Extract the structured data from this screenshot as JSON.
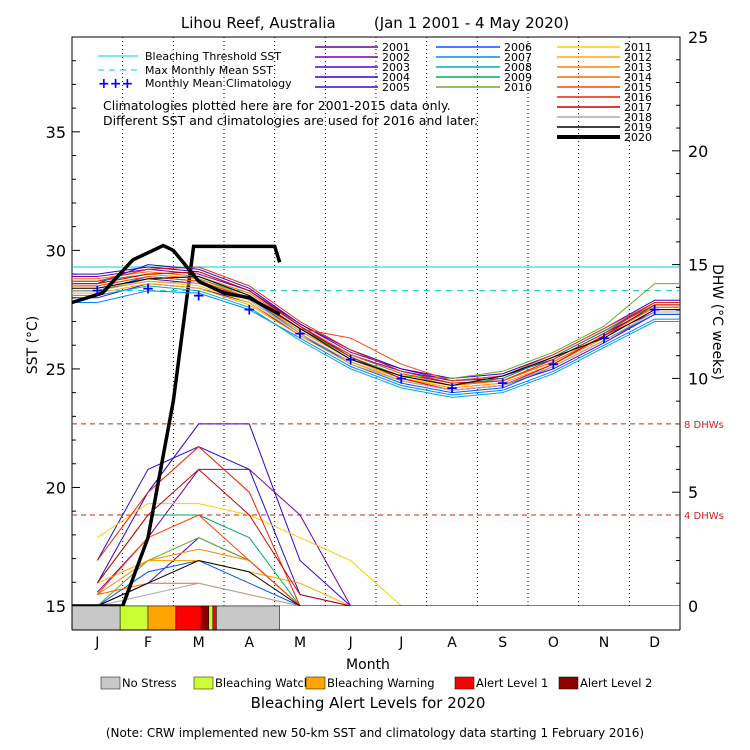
{
  "chart_data": {
    "type": "line",
    "title": "Lihou Reef, Australia        (Jan 1 2001 - 4 May 2020)",
    "xlabel": "Month",
    "ylabel_left": "SST (°C)",
    "ylabel_right": "DHW (°C weeks)",
    "months": [
      "J",
      "F",
      "M",
      "A",
      "M",
      "J",
      "J",
      "A",
      "S",
      "O",
      "N",
      "D"
    ],
    "sst_axis": {
      "min": 15,
      "max": 39,
      "ticks": [
        15,
        20,
        25,
        30,
        35
      ]
    },
    "dhw_axis": {
      "min": 0,
      "max": 25,
      "ticks": [
        0,
        5,
        10,
        15,
        20,
        25
      ]
    },
    "bleaching_threshold_sst": 29.3,
    "max_monthly_mean_sst": 28.3,
    "dhw_thresholds": [
      {
        "value": 8,
        "label": "8 DHWs"
      },
      {
        "value": 4,
        "label": "4 DHWs"
      }
    ],
    "legend_left": [
      {
        "label": "Bleaching Threshold SST",
        "color": "#00cccc",
        "style": "solid"
      },
      {
        "label": "Max Monthly Mean SST",
        "color": "#00cccc",
        "style": "dashed"
      },
      {
        "label": "Monthly Mean Climatology",
        "color": "#0000ff",
        "style": "plus"
      }
    ],
    "notes": [
      "Climatologies plotted here are for 2001-2015 data only.",
      "Different SST and climatologies are used for 2016 and later."
    ],
    "climatology": {
      "x": [
        0.5,
        1.5,
        2.5,
        3.5,
        4.5,
        5.5,
        6.5,
        7.5,
        8.5,
        9.5,
        10.5,
        11.5
      ],
      "sst": [
        28.3,
        28.4,
        28.1,
        27.5,
        26.5,
        25.4,
        24.6,
        24.2,
        24.4,
        25.2,
        26.3,
        27.5
      ]
    },
    "series": [
      {
        "name": "2001",
        "color": "#660099",
        "width": 1,
        "sst": [
          28.3,
          28.8,
          28.6,
          28.0,
          26.7,
          25.6,
          24.8,
          24.4,
          24.5,
          25.3,
          26.4,
          27.4
        ],
        "dhw": [
          0,
          0,
          0,
          0,
          0,
          0,
          0,
          0,
          0,
          0,
          0,
          0
        ]
      },
      {
        "name": "2002",
        "color": "#7700aa",
        "width": 1,
        "sst": [
          28.9,
          29.2,
          29.0,
          28.3,
          26.9,
          25.7,
          25.0,
          24.5,
          24.6,
          25.5,
          26.6,
          27.8
        ],
        "dhw": [
          0.6,
          3.0,
          6.0,
          6.0,
          4.0,
          0,
          0,
          0,
          0,
          0,
          0,
          0
        ]
      },
      {
        "name": "2003",
        "color": "#5500bb",
        "width": 1,
        "sst": [
          28.0,
          28.6,
          28.4,
          27.8,
          26.4,
          25.3,
          24.5,
          24.1,
          24.3,
          25.0,
          26.1,
          27.3
        ],
        "dhw": [
          0,
          1.0,
          3.0,
          2.0,
          0,
          0,
          0,
          0,
          0,
          0,
          0,
          0
        ]
      },
      {
        "name": "2004",
        "color": "#3300cc",
        "width": 1,
        "sst": [
          28.6,
          29.4,
          29.2,
          28.4,
          26.9,
          25.8,
          25.0,
          24.6,
          24.8,
          25.6,
          26.7,
          27.9
        ],
        "dhw": [
          1.0,
          5.0,
          8.0,
          8.0,
          2.0,
          0,
          0,
          0,
          0,
          0,
          0,
          0
        ]
      },
      {
        "name": "2005",
        "color": "#2211cc",
        "width": 1,
        "sst": [
          29.0,
          29.3,
          29.1,
          28.3,
          26.8,
          25.6,
          24.9,
          24.5,
          24.7,
          25.4,
          26.5,
          27.6
        ],
        "dhw": [
          2.0,
          6.0,
          7.0,
          6.0,
          0.5,
          0,
          0,
          0,
          0,
          0,
          0,
          0
        ]
      },
      {
        "name": "2006",
        "color": "#0055ff",
        "width": 1,
        "sst": [
          28.3,
          28.9,
          28.7,
          28.0,
          26.5,
          25.2,
          24.4,
          24.0,
          24.2,
          25.1,
          26.2,
          27.3
        ],
        "dhw": [
          0,
          1.5,
          2.0,
          1.0,
          0,
          0,
          0,
          0,
          0,
          0,
          0,
          0
        ]
      },
      {
        "name": "2007",
        "color": "#0088ff",
        "width": 1,
        "sst": [
          27.8,
          28.3,
          28.2,
          27.5,
          26.3,
          25.1,
          24.3,
          23.9,
          24.1,
          24.9,
          26.0,
          27.1
        ],
        "dhw": [
          0,
          0,
          0,
          0,
          0,
          0,
          0,
          0,
          0,
          0,
          0,
          0
        ]
      },
      {
        "name": "2008",
        "color": "#00aacc",
        "width": 1,
        "sst": [
          28.1,
          28.5,
          28.3,
          27.6,
          26.2,
          25.0,
          24.2,
          23.8,
          24.0,
          24.8,
          25.9,
          27.0
        ],
        "dhw": [
          0,
          0,
          0,
          0,
          0,
          0,
          0,
          0,
          0,
          0,
          0,
          0
        ]
      },
      {
        "name": "2009",
        "color": "#00aa66",
        "width": 1,
        "sst": [
          28.7,
          29.0,
          28.8,
          28.1,
          26.7,
          25.5,
          24.7,
          24.3,
          24.6,
          25.5,
          26.6,
          27.7
        ],
        "dhw": [
          1.0,
          4.0,
          4.0,
          3.0,
          0,
          0,
          0,
          0,
          0,
          0,
          0,
          0
        ]
      },
      {
        "name": "2010",
        "color": "#66aa33",
        "width": 1,
        "sst": [
          28.5,
          28.9,
          28.7,
          28.0,
          26.6,
          25.4,
          24.7,
          24.6,
          24.9,
          25.7,
          26.8,
          28.6
        ],
        "dhw": [
          0,
          2.0,
          3.0,
          2.0,
          0,
          0,
          0,
          0,
          0,
          0,
          0,
          0
        ]
      },
      {
        "name": "2011",
        "color": "#ffcc00",
        "width": 1,
        "sst": [
          28.4,
          28.7,
          28.5,
          27.8,
          26.5,
          25.3,
          24.6,
          24.3,
          24.5,
          25.3,
          26.4,
          27.6
        ],
        "dhw": [
          3.0,
          4.5,
          4.5,
          4.0,
          3.0,
          2.0,
          0,
          0,
          0,
          0,
          0,
          0
        ]
      },
      {
        "name": "2012",
        "color": "#ffaa00",
        "width": 1,
        "sst": [
          28.2,
          28.6,
          28.4,
          27.7,
          26.4,
          25.2,
          24.5,
          24.1,
          24.3,
          25.1,
          26.2,
          27.4
        ],
        "dhw": [
          1.0,
          2.0,
          2.0,
          1.5,
          1.0,
          0,
          0,
          0,
          0,
          0,
          0,
          0
        ]
      },
      {
        "name": "2013",
        "color": "#ff8800",
        "width": 1,
        "sst": [
          28.6,
          29.0,
          28.8,
          28.0,
          26.6,
          25.4,
          24.6,
          24.2,
          24.4,
          25.2,
          26.3,
          27.5
        ],
        "dhw": [
          0.5,
          2.0,
          2.5,
          2.0,
          0,
          0,
          0,
          0,
          0,
          0,
          0,
          0
        ]
      },
      {
        "name": "2014",
        "color": "#ff6600",
        "width": 1,
        "sst": [
          28.8,
          29.1,
          28.9,
          28.2,
          26.8,
          25.6,
          24.8,
          24.3,
          24.5,
          25.3,
          26.4,
          27.6
        ],
        "dhw": [
          0.5,
          1.0,
          1.0,
          0.5,
          0,
          0,
          0,
          0,
          0,
          0,
          0,
          0
        ]
      },
      {
        "name": "2015",
        "color": "#ff4400",
        "width": 1,
        "sst": [
          28.5,
          28.9,
          28.7,
          28.0,
          26.7,
          26.3,
          25.2,
          24.5,
          24.7,
          25.6,
          26.7,
          27.8
        ],
        "dhw": [
          0.5,
          3.0,
          4.0,
          2.0,
          0,
          0,
          0,
          0,
          0,
          0,
          0,
          0
        ]
      },
      {
        "name": "2016",
        "color": "#ee2200",
        "width": 1,
        "sst": [
          28.7,
          29.2,
          29.3,
          28.5,
          27.0,
          25.8,
          24.9,
          24.4,
          24.5,
          25.4,
          26.5,
          27.8
        ],
        "dhw": [
          2.0,
          5.0,
          7.0,
          5.0,
          0,
          0,
          0,
          0,
          0,
          0,
          0,
          0
        ]
      },
      {
        "name": "2017",
        "color": "#cc0000",
        "width": 1,
        "sst": [
          28.6,
          29.0,
          29.1,
          28.3,
          26.8,
          25.5,
          24.6,
          24.1,
          24.3,
          25.2,
          26.4,
          27.7
        ],
        "dhw": [
          1.0,
          4.0,
          6.0,
          4.0,
          0.5,
          0,
          0,
          0,
          0,
          0,
          0,
          0
        ]
      },
      {
        "name": "2018",
        "color": "#aaaaaa",
        "width": 1,
        "sst": [
          28.3,
          28.7,
          28.6,
          27.9,
          26.5,
          25.3,
          24.5,
          24.1,
          24.3,
          25.1,
          26.2,
          27.4
        ],
        "dhw": [
          0,
          0.5,
          1.0,
          0.5,
          0,
          0,
          0,
          0,
          0,
          0,
          0,
          0
        ]
      },
      {
        "name": "2019",
        "color": "#000000",
        "width": 1,
        "sst": [
          28.4,
          28.8,
          28.9,
          28.1,
          26.7,
          25.4,
          24.7,
          24.3,
          24.7,
          25.5,
          26.3,
          27.5
        ],
        "dhw": [
          0,
          1.0,
          2.0,
          1.5,
          0,
          0,
          0,
          0,
          0,
          0,
          0,
          0
        ]
      },
      {
        "name": "2020",
        "color": "#000000",
        "width": 3.5,
        "sst_x": [
          0,
          0.6,
          1.2,
          1.8,
          2.0,
          2.5,
          3.0,
          3.5,
          4.1
        ],
        "sst": [
          27.8,
          28.2,
          29.6,
          30.2,
          30.0,
          28.7,
          28.2,
          28.0,
          27.3
        ],
        "dhw_x": [
          0,
          1.0,
          1.5,
          2.0,
          2.4,
          3.0,
          3.5,
          4.0,
          4.1
        ],
        "dhw": [
          0,
          0,
          3.0,
          9.0,
          15.8,
          15.8,
          15.8,
          15.8,
          15.1
        ]
      }
    ],
    "alert_bar": {
      "title": "Bleaching Alert Levels for 2020",
      "segments": [
        {
          "level": "No Stress",
          "start": 0,
          "end": 0.95
        },
        {
          "level": "Bleaching Watch",
          "start": 0.95,
          "end": 1.5
        },
        {
          "level": "Bleaching Warning",
          "start": 1.5,
          "end": 2.05
        },
        {
          "level": "Alert Level 1",
          "start": 2.05,
          "end": 2.55
        },
        {
          "level": "Alert Level 2",
          "start": 2.55,
          "end": 2.7
        },
        {
          "level": "Bleaching Watch",
          "start": 2.7,
          "end": 2.78
        },
        {
          "level": "Alert Level 1",
          "start": 2.78,
          "end": 2.85
        },
        {
          "level": "No Stress",
          "start": 2.85,
          "end": 4.1
        }
      ]
    },
    "alert_legend": [
      {
        "label": "No Stress",
        "color": "#c8c8c8"
      },
      {
        "label": "Bleaching Watch",
        "color": "#ccff33"
      },
      {
        "label": "Bleaching Warning",
        "color": "#ffa500"
      },
      {
        "label": "Alert Level 1",
        "color": "#ff0000"
      },
      {
        "label": "Alert Level 2",
        "color": "#8b0000"
      }
    ],
    "footnote": "(Note: CRW implemented new 50-km SST and climatology data starting 1 February 2016)"
  }
}
